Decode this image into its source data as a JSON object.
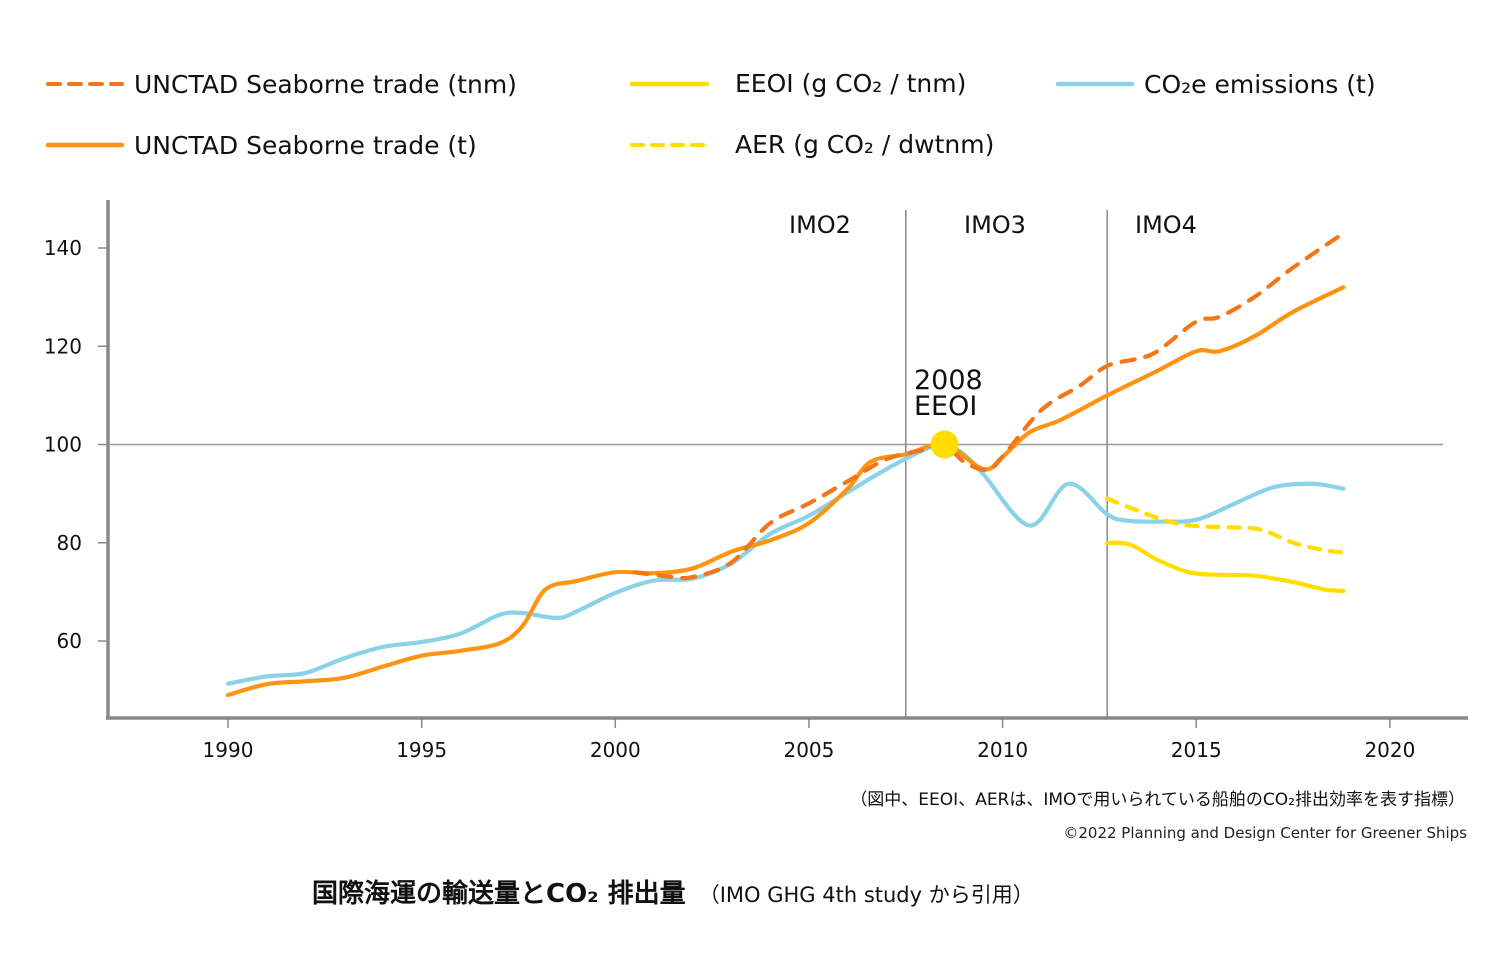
{
  "chart_data": {
    "type": "line",
    "title": "国際海運の輸送量とCO₂排出量",
    "subtitle": "(IMO GHG 4th study から引用)",
    "xlabel": "",
    "ylabel": "",
    "xlim": [
      1987,
      2021.5
    ],
    "ylim": [
      45,
      150
    ],
    "x_ticks": [
      1990,
      1995,
      2000,
      2005,
      2010,
      2015,
      2020
    ],
    "x_tick_labels": [
      "1990",
      "1995",
      "2000",
      "2005",
      "2010",
      "2015",
      "2020"
    ],
    "y_ticks": [
      60,
      80,
      100,
      120,
      140
    ],
    "y_tick_labels": [
      "60",
      "80",
      "100",
      "120",
      "140"
    ],
    "grid": false,
    "reference_line_y": 100,
    "period_dividers": [
      {
        "x": 2007.5,
        "label_before": "IMO2"
      },
      {
        "x": 2012.7,
        "label_before": "IMO3",
        "label_after": "IMO4"
      }
    ],
    "period_labels": [
      "IMO2",
      "IMO3",
      "IMO4"
    ],
    "annotation": {
      "x": 2008.5,
      "y": 100,
      "line1": "2008",
      "line2": "EEOI"
    },
    "legend_position": "top",
    "series": [
      {
        "name": "UNCTAD Seaborne trade (tnm)",
        "color": "#F5761A",
        "style": "dashed",
        "x": [
          2000.5,
          2001.3,
          2002,
          2003,
          2004,
          2005,
          2006,
          2007,
          2008,
          2008.5,
          2009,
          2009.6,
          2010,
          2011,
          2012,
          2012.7,
          2013.5,
          2014,
          2015,
          2015.6,
          2016.5,
          2017.5,
          2018.8
        ],
        "values": [
          74,
          73.2,
          73,
          76,
          84,
          88,
          92.5,
          97,
          99,
          100,
          96.5,
          94.8,
          97.5,
          107,
          112,
          116,
          117.5,
          119,
          125,
          126,
          130,
          136,
          143
        ]
      },
      {
        "name": "UNCTAD Seaborne trade (t)",
        "color": "#FF9412",
        "style": "solid",
        "x": [
          1990,
          1991,
          1992,
          1993,
          1994,
          1995,
          1996,
          1997,
          1997.6,
          1998.2,
          1999,
          2000,
          2001,
          2002,
          2003,
          2004,
          2005,
          2006,
          2006.6,
          2007.5,
          2008.5,
          2009.5,
          2010,
          2010.7,
          2011.5,
          2012.7,
          2014,
          2015,
          2015.6,
          2016.5,
          2017.5,
          2018.8
        ],
        "values": [
          49,
          51.2,
          51.8,
          52.5,
          54.8,
          57,
          58,
          59.5,
          63,
          70.5,
          72.2,
          74,
          73.8,
          74.8,
          78.2,
          80.5,
          84,
          91,
          96.5,
          98,
          100,
          95,
          97.5,
          102.5,
          105,
          110,
          115,
          119,
          119,
          122,
          127,
          132
        ]
      },
      {
        "name": "CO₂e emissions (t)",
        "color": "#8AD2E8",
        "style": "solid",
        "x": [
          1990,
          1991,
          1992,
          1993,
          1994,
          1995,
          1996,
          1997,
          1997.6,
          1998.5,
          1999,
          2000,
          2001,
          2002,
          2003,
          2004,
          2005,
          2006,
          2007,
          2008,
          2008.5,
          2009,
          2009.5,
          2010.7,
          2011.7,
          2012.7,
          2013.2,
          2014,
          2015,
          2016,
          2017,
          2018,
          2018.8
        ],
        "values": [
          51.3,
          52.8,
          53.5,
          56.5,
          58.8,
          59.8,
          61.5,
          65.3,
          65.7,
          64.7,
          66,
          69.8,
          72.3,
          72.7,
          75.8,
          81.8,
          85.5,
          90.3,
          95,
          99,
          100,
          98,
          94,
          83.5,
          92,
          85.8,
          84.5,
          84.3,
          84.7,
          88,
          91.3,
          92,
          91
        ]
      },
      {
        "name": "EEOI (g CO₂ / tnm)",
        "color": "#FFDD00",
        "style": "solid",
        "x": [
          2012.7,
          2013.3,
          2014,
          2014.8,
          2015.5,
          2016.5,
          2017.5,
          2018.3,
          2018.8
        ],
        "values": [
          80,
          79.6,
          76.5,
          74,
          73.5,
          73.3,
          72,
          70.5,
          70.2
        ]
      },
      {
        "name": "AER (g CO₂ / dwtnm)",
        "color": "#FFDD00",
        "style": "dashed",
        "x": [
          2012.7,
          2013.5,
          2014.3,
          2015,
          2016,
          2016.7,
          2017.5,
          2018.3,
          2018.8
        ],
        "values": [
          89,
          86.5,
          84.3,
          83.4,
          83.1,
          82.6,
          80,
          78.5,
          78
        ]
      }
    ],
    "highlight_point": {
      "x": 2008.5,
      "y": 100,
      "color": "#FFDD00"
    }
  },
  "legend": [
    {
      "label": "UNCTAD Seaborne trade (tnm)"
    },
    {
      "label": "UNCTAD Seaborne trade (t)"
    },
    {
      "label": "EEOI (g CO₂ / tnm)"
    },
    {
      "label": "AER (g CO₂ / dwtnm)"
    },
    {
      "label": "CO₂e emissions (t)"
    }
  ],
  "note": "（図中、EEOI、AERは、IMOで用いられている船舶のCO₂排出効率を表す指標）",
  "copyright": "©2022 Planning and Design Center for Greener Ships",
  "caption": {
    "main": "国際海運の輸送量とCO₂ 排出量",
    "sub": "（IMO GHG 4th study から引用）"
  }
}
